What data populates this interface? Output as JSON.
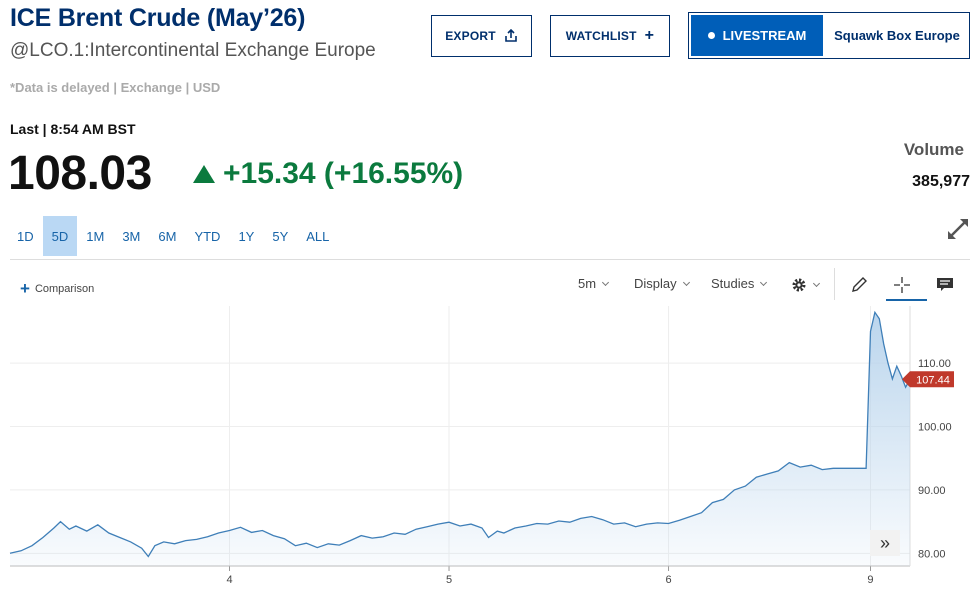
{
  "header": {
    "title": "ICE Brent Crude (May’26)",
    "subtitle": "@LCO.1:Intercontinental Exchange Europe",
    "delay_note": "*Data is delayed | Exchange | USD"
  },
  "actions": {
    "export_label": "EXPORT",
    "watchlist_label": "WATCHLIST",
    "livestream_label": "LIVESTREAM",
    "livestream_show": "Squawk Box Europe"
  },
  "quote": {
    "last_label": "Last | 8:54 AM BST",
    "price": "108.03",
    "change": "+15.34 (+16.55%)",
    "direction": "up",
    "volume_label": "Volume",
    "volume_value": "385,977"
  },
  "colors": {
    "brand": "#002f6c",
    "accent": "#005eb8",
    "positive": "#0b7a3e",
    "price_tag": "#c0392b",
    "line": "#3f7fb8",
    "fill": "#b7d3ec"
  },
  "ranges": [
    "1D",
    "5D",
    "1M",
    "3M",
    "6M",
    "YTD",
    "1Y",
    "5Y",
    "ALL"
  ],
  "active_range": "5D",
  "toolbar": {
    "comparison_label": "Comparison",
    "interval_label": "5m",
    "display_label": "Display",
    "studies_label": "Studies",
    "icons": [
      "gear-icon",
      "pencil-icon",
      "crosshair-icon",
      "comment-icon"
    ]
  },
  "chart_data": {
    "type": "area",
    "x_tick_labels": [
      "4",
      "5",
      "6",
      "9"
    ],
    "y_tick_labels": [
      "110.00",
      "100.00",
      "90.00",
      "80.00"
    ],
    "ylim": [
      78,
      119
    ],
    "current_price_label": "107.44",
    "grid": true,
    "series": [
      {
        "values": [
          [
            3.0,
            80.0
          ],
          [
            3.05,
            80.4
          ],
          [
            3.1,
            81.2
          ],
          [
            3.15,
            82.5
          ],
          [
            3.2,
            84.0
          ],
          [
            3.23,
            85.0
          ],
          [
            3.27,
            83.8
          ],
          [
            3.3,
            84.3
          ],
          [
            3.35,
            83.5
          ],
          [
            3.4,
            84.5
          ],
          [
            3.45,
            83.2
          ],
          [
            3.5,
            82.5
          ],
          [
            3.55,
            81.8
          ],
          [
            3.6,
            80.8
          ],
          [
            3.63,
            79.5
          ],
          [
            3.66,
            81.2
          ],
          [
            3.7,
            81.8
          ],
          [
            3.75,
            81.5
          ],
          [
            3.8,
            82.0
          ],
          [
            3.85,
            82.2
          ],
          [
            3.9,
            82.6
          ],
          [
            3.95,
            83.2
          ],
          [
            4.0,
            83.6
          ],
          [
            4.05,
            84.1
          ],
          [
            4.1,
            83.3
          ],
          [
            4.15,
            83.6
          ],
          [
            4.2,
            82.8
          ],
          [
            4.25,
            82.3
          ],
          [
            4.3,
            81.2
          ],
          [
            4.35,
            81.6
          ],
          [
            4.4,
            80.9
          ],
          [
            4.45,
            81.5
          ],
          [
            4.5,
            81.3
          ],
          [
            4.55,
            82.0
          ],
          [
            4.6,
            82.8
          ],
          [
            4.65,
            82.4
          ],
          [
            4.7,
            82.6
          ],
          [
            4.75,
            83.2
          ],
          [
            4.8,
            83.0
          ],
          [
            4.85,
            83.8
          ],
          [
            4.9,
            84.2
          ],
          [
            4.95,
            84.6
          ],
          [
            5.0,
            84.9
          ],
          [
            5.05,
            84.3
          ],
          [
            5.1,
            84.6
          ],
          [
            5.15,
            84.0
          ],
          [
            5.18,
            82.5
          ],
          [
            5.22,
            83.5
          ],
          [
            5.25,
            83.2
          ],
          [
            5.3,
            84.0
          ],
          [
            5.35,
            84.3
          ],
          [
            5.4,
            84.7
          ],
          [
            5.45,
            84.6
          ],
          [
            5.5,
            85.1
          ],
          [
            5.55,
            84.9
          ],
          [
            5.6,
            85.5
          ],
          [
            5.65,
            85.8
          ],
          [
            5.7,
            85.3
          ],
          [
            5.75,
            84.6
          ],
          [
            5.8,
            84.8
          ],
          [
            5.85,
            84.2
          ],
          [
            5.9,
            84.6
          ],
          [
            5.95,
            84.8
          ],
          [
            6.0,
            84.7
          ],
          [
            6.05,
            85.2
          ],
          [
            6.1,
            85.8
          ],
          [
            6.15,
            86.4
          ],
          [
            6.2,
            88.0
          ],
          [
            6.25,
            88.5
          ],
          [
            6.3,
            90.0
          ],
          [
            6.35,
            90.6
          ],
          [
            6.4,
            92.0
          ],
          [
            6.45,
            92.5
          ],
          [
            6.5,
            93.0
          ],
          [
            6.55,
            94.3
          ],
          [
            6.6,
            93.6
          ],
          [
            6.65,
            93.9
          ],
          [
            6.7,
            93.2
          ],
          [
            6.75,
            93.4
          ],
          [
            6.8,
            93.4
          ],
          [
            6.85,
            93.4
          ],
          [
            6.9,
            93.4
          ],
          [
            6.92,
            115.0
          ],
          [
            6.94,
            118.0
          ],
          [
            6.96,
            117.0
          ],
          [
            6.98,
            113.0
          ],
          [
            7.0,
            110.0
          ],
          [
            7.02,
            107.5
          ],
          [
            7.04,
            109.5
          ],
          [
            7.06,
            108.0
          ],
          [
            7.08,
            106.2
          ],
          [
            7.1,
            107.44
          ]
        ]
      }
    ]
  }
}
